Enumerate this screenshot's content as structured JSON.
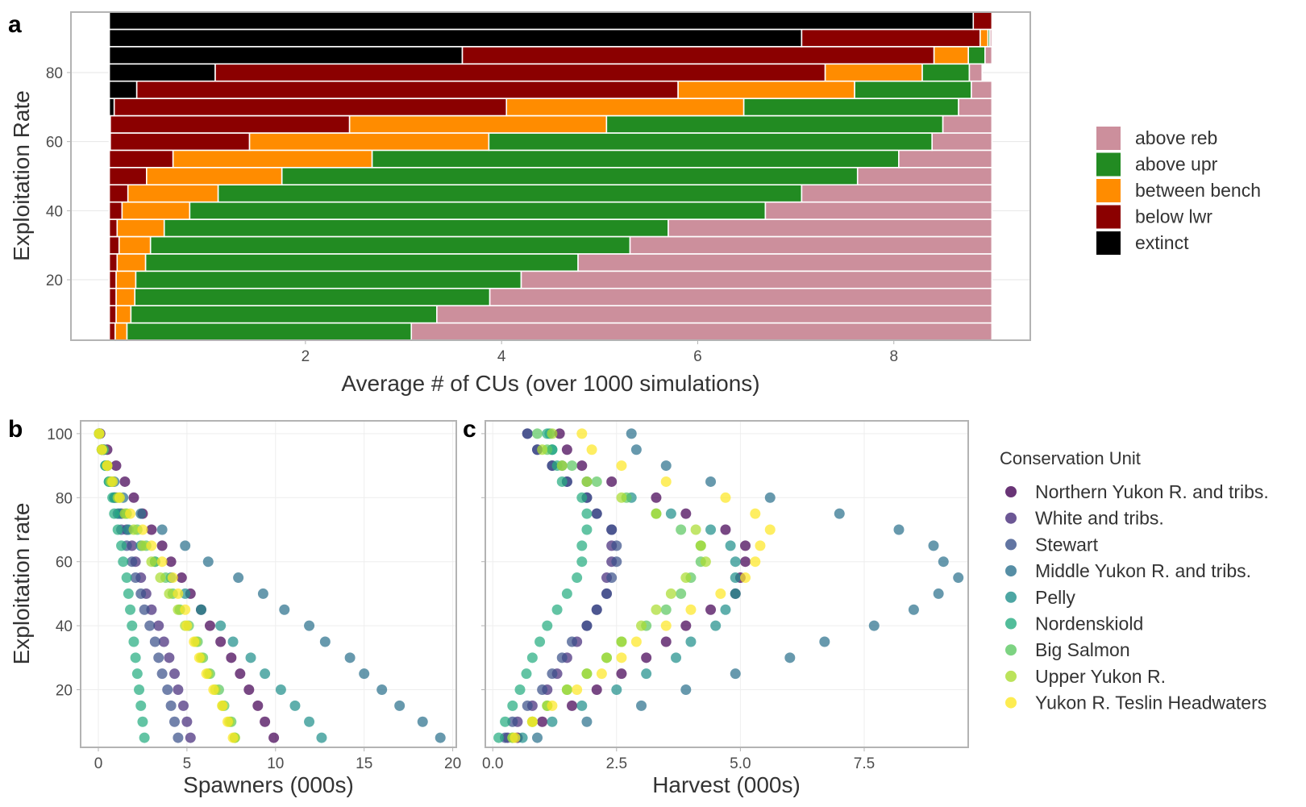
{
  "chart_data": [
    {
      "panel": "a",
      "type": "bar",
      "orientation": "horizontal",
      "stacked": true,
      "xlabel": "Average # of CUs (over 1000 simulations)",
      "ylabel": "Exploitation Rate",
      "xlim": [
        0,
        9
      ],
      "ylim": [
        2.5,
        97.5
      ],
      "xticks": [
        2,
        4,
        6,
        8
      ],
      "yticks": [
        20,
        40,
        60,
        80
      ],
      "grid": true,
      "legend_position": "right",
      "stack_order": [
        "extinct",
        "below lwr",
        "between bench",
        "above upr",
        "above reb"
      ],
      "legend": [
        "above reb",
        "above upr",
        "between bench",
        "below lwr",
        "extinct"
      ],
      "colors": {
        "above reb": "#CC8F9C",
        "above upr": "#228B22",
        "between bench": "#FF8C00",
        "below lwr": "#8B0000",
        "extinct": "#000000"
      },
      "rows": [
        {
          "er": 5,
          "values": [
            0,
            0.06,
            0.12,
            2.9,
            5.92
          ]
        },
        {
          "er": 10,
          "values": [
            0,
            0.07,
            0.15,
            3.12,
            5.66
          ]
        },
        {
          "er": 15,
          "values": [
            0,
            0.07,
            0.19,
            3.62,
            5.12
          ]
        },
        {
          "er": 20,
          "values": [
            0,
            0.07,
            0.2,
            3.93,
            4.8
          ]
        },
        {
          "er": 25,
          "values": [
            0,
            0.08,
            0.29,
            4.41,
            4.22
          ]
        },
        {
          "er": 30,
          "values": [
            0,
            0.1,
            0.32,
            4.89,
            3.69
          ]
        },
        {
          "er": 35,
          "values": [
            0,
            0.08,
            0.48,
            5.14,
            3.3
          ]
        },
        {
          "er": 40,
          "values": [
            0,
            0.13,
            0.69,
            5.87,
            2.31
          ]
        },
        {
          "er": 45,
          "values": [
            0,
            0.19,
            0.92,
            5.95,
            1.94
          ]
        },
        {
          "er": 50,
          "values": [
            0,
            0.38,
            1.38,
            5.87,
            1.37
          ]
        },
        {
          "er": 55,
          "values": [
            0,
            0.65,
            2.03,
            5.37,
            0.95
          ]
        },
        {
          "er": 60,
          "values": [
            0.01,
            1.42,
            2.44,
            4.52,
            0.61
          ]
        },
        {
          "er": 65,
          "values": [
            0.01,
            2.44,
            2.62,
            3.43,
            0.5
          ]
        },
        {
          "er": 70,
          "values": [
            0.05,
            4.0,
            2.42,
            2.19,
            0.34
          ]
        },
        {
          "er": 75,
          "values": [
            0.28,
            5.52,
            1.8,
            1.19,
            0.21
          ]
        },
        {
          "er": 80,
          "values": [
            1.08,
            6.22,
            0.99,
            0.48,
            0.13
          ]
        },
        {
          "er": 85,
          "values": [
            3.6,
            4.81,
            0.35,
            0.17,
            0.07
          ]
        },
        {
          "er": 90,
          "values": [
            7.06,
            1.82,
            0.08,
            0.02,
            0.02
          ]
        },
        {
          "er": 95,
          "values": [
            8.81,
            0.19,
            0,
            0,
            0
          ]
        }
      ]
    },
    {
      "panel": "b",
      "type": "scatter",
      "xlabel": "Spawners (000s)",
      "ylabel": "Exploitation rate",
      "xlim": [
        -1,
        20.2
      ],
      "ylim": [
        2,
        104
      ],
      "xticks": [
        0,
        5,
        10,
        15,
        20
      ],
      "yticks": [
        20,
        40,
        60,
        80,
        100
      ],
      "er": [
        5,
        10,
        15,
        20,
        25,
        30,
        35,
        40,
        45,
        50,
        55,
        60,
        65,
        70,
        75,
        80,
        85,
        90,
        95,
        100
      ],
      "series": [
        {
          "name": "Northern Yukon R. and tribs.",
          "values": [
            9.9,
            9.4,
            9.0,
            8.5,
            8.0,
            7.5,
            6.9,
            6.3,
            5.8,
            5.2,
            4.7,
            4.1,
            3.6,
            3.0,
            2.5,
            2.0,
            1.5,
            1.0,
            0.5,
            0.1
          ]
        },
        {
          "name": "White and tribs.",
          "values": [
            5.2,
            5.0,
            4.8,
            4.5,
            4.3,
            4.0,
            3.7,
            3.4,
            3.0,
            2.7,
            2.4,
            2.1,
            1.9,
            1.6,
            1.3,
            1.0,
            0.8,
            0.5,
            0.3,
            0.05
          ]
        },
        {
          "name": "Stewart",
          "values": [
            4.5,
            4.3,
            4.1,
            3.9,
            3.6,
            3.4,
            3.2,
            2.9,
            2.6,
            2.4,
            2.1,
            1.9,
            1.6,
            1.3,
            1.1,
            0.9,
            0.7,
            0.5,
            0.3,
            0.05
          ]
        },
        {
          "name": "Middle Yukon R. and tribs.",
          "values": [
            19.3,
            18.3,
            17.0,
            16.0,
            15.0,
            14.2,
            12.8,
            11.9,
            10.5,
            9.3,
            7.9,
            6.2,
            4.9,
            3.6,
            2.4,
            1.4,
            0.9,
            0.5,
            0.2,
            0.05
          ]
        },
        {
          "name": "Pelly",
          "values": [
            12.6,
            11.9,
            11.1,
            10.3,
            9.4,
            8.6,
            7.6,
            6.9,
            5.8,
            4.9,
            4.1,
            3.2,
            2.4,
            1.7,
            1.2,
            0.9,
            0.6,
            0.4,
            0.2,
            0.05
          ]
        },
        {
          "name": "Nordenskiold",
          "values": [
            2.6,
            2.5,
            2.4,
            2.3,
            2.2,
            2.1,
            2.0,
            1.9,
            1.8,
            1.7,
            1.6,
            1.4,
            1.3,
            1.1,
            0.9,
            0.8,
            0.6,
            0.4,
            0.2,
            0.05
          ]
        },
        {
          "name": "Big Salmon",
          "values": [
            7.7,
            7.5,
            7.1,
            6.8,
            6.3,
            5.9,
            5.6,
            5.1,
            4.6,
            4.2,
            3.8,
            3.2,
            2.7,
            2.2,
            1.6,
            1.2,
            0.8,
            0.5,
            0.3,
            0.05
          ]
        },
        {
          "name": "Upper Yukon R.",
          "values": [
            7.7,
            7.4,
            7.0,
            6.6,
            6.2,
            5.8,
            5.5,
            4.9,
            4.5,
            4.0,
            3.5,
            3.0,
            2.5,
            2.0,
            1.5,
            1.1,
            0.7,
            0.5,
            0.2,
            0.05
          ]
        },
        {
          "name": "Yukon R. Teslin Headwaters",
          "values": [
            7.6,
            7.3,
            7.0,
            6.5,
            6.1,
            5.7,
            5.4,
            5.0,
            4.9,
            4.5,
            4.2,
            3.6,
            3.0,
            2.5,
            1.8,
            1.2,
            0.8,
            0.5,
            0.2,
            0.05
          ]
        }
      ]
    },
    {
      "panel": "c",
      "type": "scatter",
      "xlabel": "Harvest (000s)",
      "ylabel": "",
      "xlim": [
        -0.15,
        9.6
      ],
      "ylim": [
        2,
        104
      ],
      "xticks": [
        0,
        2.5,
        5,
        7.5
      ],
      "xtick_labels": [
        "0.0",
        "2.5",
        "5.0",
        "7.5"
      ],
      "yticks": [
        20,
        40,
        60,
        80,
        100
      ],
      "er": [
        5,
        10,
        15,
        20,
        25,
        30,
        35,
        40,
        45,
        50,
        55,
        60,
        65,
        70,
        75,
        80,
        85,
        90,
        95,
        100
      ],
      "series": [
        {
          "name": "Northern Yukon R. and tribs.",
          "values": [
            0.5,
            1.0,
            1.6,
            2.1,
            2.6,
            3.1,
            3.5,
            3.9,
            4.4,
            4.9,
            5.0,
            5.1,
            5.1,
            4.7,
            3.9,
            3.3,
            2.4,
            1.8,
            1.5,
            1.35
          ]
        },
        {
          "name": "White and tribs.",
          "values": [
            0.3,
            0.5,
            0.8,
            1.1,
            1.3,
            1.5,
            1.7,
            1.9,
            2.1,
            2.3,
            2.3,
            2.4,
            2.4,
            2.4,
            2.1,
            1.9,
            1.5,
            1.2,
            0.9,
            0.7
          ]
        },
        {
          "name": "Stewart",
          "values": [
            0.25,
            0.4,
            0.7,
            1.0,
            1.2,
            1.4,
            1.6,
            1.9,
            2.1,
            2.3,
            2.4,
            2.5,
            2.5,
            2.4,
            2.1,
            1.9,
            1.5,
            1.2,
            0.9,
            0.7
          ]
        },
        {
          "name": "Middle Yukon R. and tribs.",
          "values": [
            0.9,
            1.9,
            3.0,
            3.9,
            4.9,
            6.0,
            6.7,
            7.7,
            8.5,
            9.0,
            9.4,
            9.1,
            8.9,
            8.2,
            7.0,
            5.6,
            4.4,
            3.5,
            2.9,
            2.8
          ]
        },
        {
          "name": "Pelly",
          "values": [
            0.6,
            1.2,
            1.8,
            2.5,
            3.1,
            3.7,
            4.0,
            4.5,
            4.7,
            4.9,
            4.9,
            4.9,
            4.8,
            4.4,
            3.6,
            2.8,
            1.9,
            1.4,
            1.2,
            1.15
          ]
        },
        {
          "name": "Nordenskiold",
          "values": [
            0.12,
            0.25,
            0.4,
            0.55,
            0.68,
            0.8,
            0.95,
            1.1,
            1.3,
            1.5,
            1.7,
            1.8,
            1.8,
            1.9,
            1.9,
            1.8,
            1.4,
            1.3,
            1.2,
            1.1
          ]
        },
        {
          "name": "Big Salmon",
          "values": [
            0.4,
            0.8,
            1.1,
            1.5,
            1.9,
            2.3,
            2.6,
            3.1,
            3.5,
            3.8,
            4.0,
            4.2,
            4.2,
            3.8,
            3.3,
            2.7,
            2.1,
            1.6,
            1.1,
            0.9
          ]
        },
        {
          "name": "Upper Yukon R.",
          "values": [
            0.4,
            0.8,
            1.1,
            1.5,
            1.9,
            2.3,
            2.6,
            3.0,
            3.3,
            3.6,
            3.9,
            4.3,
            4.2,
            4.1,
            3.3,
            2.6,
            1.9,
            1.4,
            1.0,
            1.2
          ]
        },
        {
          "name": "Yukon R. Teslin Headwaters",
          "values": [
            0.45,
            0.8,
            1.2,
            1.7,
            2.2,
            2.6,
            2.9,
            3.5,
            4.0,
            4.6,
            5.1,
            5.3,
            5.4,
            5.6,
            5.3,
            4.7,
            3.5,
            2.6,
            2.0,
            1.8
          ]
        }
      ],
      "legend_title": "Conservation Unit",
      "legend_position": "right",
      "colors": [
        "#440154",
        "#472D7B",
        "#3B528B",
        "#2C728E",
        "#21908C",
        "#27AD81",
        "#5DC863",
        "#AADC32",
        "#FDE725"
      ]
    }
  ],
  "panel_labels": {
    "a": "a",
    "b": "b",
    "c": "c"
  }
}
